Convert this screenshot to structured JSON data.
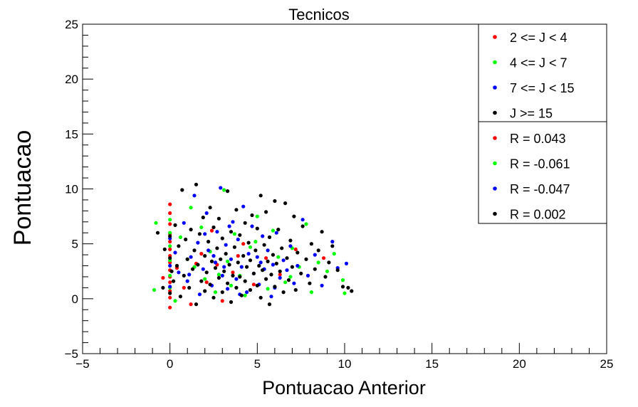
{
  "chart_data": {
    "type": "scatter",
    "title": "Tecnicos",
    "xlabel": "Pontuacao Anterior",
    "ylabel": "Pontuacao",
    "xlim": [
      -5,
      25
    ],
    "ylim": [
      -5,
      25
    ],
    "xticks": [
      "−5",
      "0",
      "5",
      "10",
      "15",
      "20",
      "25"
    ],
    "yticks": [
      "−5",
      "0",
      "5",
      "10",
      "15",
      "20",
      "25"
    ],
    "grid": false,
    "legend_position": "top-right",
    "series": [
      {
        "name": "2 <= J < 4",
        "color": "#ff0000",
        "R_label": "R = 0.043",
        "points": [
          [
            0,
            8.6
          ],
          [
            0,
            7.8
          ],
          [
            0,
            6.8
          ],
          [
            0,
            5.9
          ],
          [
            0,
            5.2
          ],
          [
            0,
            4.5
          ],
          [
            0,
            3.9
          ],
          [
            0,
            3.3
          ],
          [
            0,
            2.6
          ],
          [
            0,
            2.0
          ],
          [
            0,
            1.5
          ],
          [
            0,
            0.7
          ],
          [
            0,
            0.1
          ],
          [
            0,
            -0.8
          ],
          [
            -0.4,
            1.9
          ],
          [
            0.4,
            2.8
          ],
          [
            1.2,
            -0.5
          ],
          [
            1.8,
            4.1
          ],
          [
            2.4,
            6.2
          ],
          [
            2.7,
            3.1
          ],
          [
            3.0,
            -0.2
          ],
          [
            3.6,
            2.4
          ],
          [
            4.2,
            5.0
          ],
          [
            4.8,
            1.3
          ],
          [
            5.5,
            3.7
          ],
          [
            6.3,
            2.2
          ],
          [
            7.2,
            4.5
          ],
          [
            8.8,
            3.7
          ],
          [
            0.8,
            1.0
          ],
          [
            1.5,
            3.2
          ],
          [
            2.1,
            1.5
          ],
          [
            3.9,
            3.9
          ]
        ]
      },
      {
        "name": "4 <= J < 7",
        "color": "#00ff00",
        "R_label": "R = -0.061",
        "points": [
          [
            -0.8,
            6.9
          ],
          [
            -0.9,
            0.8
          ],
          [
            0,
            7.2
          ],
          [
            0,
            6.0
          ],
          [
            0,
            4.8
          ],
          [
            0,
            3.5
          ],
          [
            0,
            2.1
          ],
          [
            0,
            1.0
          ],
          [
            0.3,
            -0.2
          ],
          [
            0.6,
            5.6
          ],
          [
            1.2,
            8.3
          ],
          [
            1.4,
            2.9
          ],
          [
            1.8,
            6.5
          ],
          [
            2.0,
            1.8
          ],
          [
            2.3,
            4.3
          ],
          [
            2.6,
            0.6
          ],
          [
            3.1,
            9.9
          ],
          [
            3.3,
            3.4
          ],
          [
            3.7,
            5.9
          ],
          [
            4.0,
            2.1
          ],
          [
            4.3,
            0.3
          ],
          [
            4.6,
            4.7
          ],
          [
            5.0,
            7.5
          ],
          [
            5.3,
            2.6
          ],
          [
            5.6,
            0.9
          ],
          [
            5.9,
            6.2
          ],
          [
            6.2,
            3.8
          ],
          [
            6.6,
            1.5
          ],
          [
            7.0,
            4.6
          ],
          [
            7.4,
            2.9
          ],
          [
            7.8,
            6.8
          ],
          [
            8.1,
            0.6
          ],
          [
            8.5,
            3.3
          ],
          [
            9.0,
            2.5
          ],
          [
            9.4,
            4.1
          ],
          [
            9.9,
            1.7
          ],
          [
            10.0,
            0.5
          ],
          [
            1.0,
            3.6
          ],
          [
            2.8,
            2.2
          ],
          [
            4.9,
            5.2
          ],
          [
            6.9,
            2.0
          ],
          [
            3.5,
            1.2
          ]
        ]
      },
      {
        "name": "7 <= J < 15",
        "color": "#0000ff",
        "R_label": "R = -0.047",
        "points": [
          [
            0,
            1.1
          ],
          [
            0,
            3.0
          ],
          [
            0,
            5.5
          ],
          [
            0.3,
            4.2
          ],
          [
            0.5,
            2.4
          ],
          [
            0.8,
            6.9
          ],
          [
            1.0,
            1.6
          ],
          [
            1.2,
            3.8
          ],
          [
            1.4,
            9.4
          ],
          [
            1.6,
            5.1
          ],
          [
            1.7,
            0.4
          ],
          [
            1.9,
            2.7
          ],
          [
            2.1,
            7.8
          ],
          [
            2.2,
            4.4
          ],
          [
            2.4,
            1.2
          ],
          [
            2.6,
            3.3
          ],
          [
            2.7,
            6.1
          ],
          [
            2.9,
            10.1
          ],
          [
            3.0,
            2.1
          ],
          [
            3.2,
            4.9
          ],
          [
            3.3,
            0.9
          ],
          [
            3.5,
            3.6
          ],
          [
            3.6,
            7.0
          ],
          [
            3.8,
            1.8
          ],
          [
            3.9,
            5.4
          ],
          [
            4.1,
            2.9
          ],
          [
            4.2,
            8.4
          ],
          [
            4.4,
            0.6
          ],
          [
            4.5,
            4.1
          ],
          [
            4.7,
            6.6
          ],
          [
            4.8,
            2.3
          ],
          [
            5.0,
            3.8
          ],
          [
            5.1,
            1.3
          ],
          [
            5.3,
            5.7
          ],
          [
            5.4,
            2.7
          ],
          [
            5.6,
            4.4
          ],
          [
            5.8,
            0.2
          ],
          [
            5.9,
            3.1
          ],
          [
            6.1,
            6.0
          ],
          [
            6.3,
            1.9
          ],
          [
            6.5,
            3.5
          ],
          [
            6.7,
            2.6
          ],
          [
            6.9,
            4.8
          ],
          [
            7.1,
            1.4
          ],
          [
            7.3,
            3.0
          ],
          [
            7.6,
            7.2
          ],
          [
            7.9,
            2.1
          ],
          [
            8.3,
            4.0
          ],
          [
            8.7,
            1.2
          ],
          [
            9.3,
            5.2
          ],
          [
            9.6,
            2.8
          ],
          [
            10.1,
            3.2
          ],
          [
            1.1,
            2.2
          ],
          [
            2.0,
            5.9
          ],
          [
            3.1,
            2.9
          ],
          [
            4.0,
            0.4
          ],
          [
            5.2,
            3.3
          ],
          [
            6.0,
            1.0
          ],
          [
            3.4,
            6.6
          ],
          [
            2.5,
            3.9
          ]
        ]
      },
      {
        "name": "J >= 15",
        "color": "#000000",
        "R_label": "R = 0.002",
        "points": [
          [
            -0.7,
            6.0
          ],
          [
            -0.4,
            1.0
          ],
          [
            -0.3,
            4.5
          ],
          [
            0,
            5.7
          ],
          [
            0,
            3.7
          ],
          [
            0,
            0.5
          ],
          [
            0.1,
            2.5
          ],
          [
            0.2,
            1.6
          ],
          [
            0.3,
            6.7
          ],
          [
            0.4,
            3.0
          ],
          [
            0.5,
            4.8
          ],
          [
            0.6,
            0.2
          ],
          [
            0.7,
            9.9
          ],
          [
            0.8,
            2.1
          ],
          [
            0.9,
            5.4
          ],
          [
            1.0,
            3.6
          ],
          [
            1.1,
            1.0
          ],
          [
            1.2,
            6.3
          ],
          [
            1.3,
            2.7
          ],
          [
            1.4,
            4.4
          ],
          [
            1.5,
            10.4
          ],
          [
            1.5,
            -0.5
          ],
          [
            1.6,
            3.1
          ],
          [
            1.7,
            5.9
          ],
          [
            1.8,
            1.6
          ],
          [
            1.9,
            7.4
          ],
          [
            2.0,
            3.9
          ],
          [
            2.0,
            0.7
          ],
          [
            2.1,
            2.4
          ],
          [
            2.2,
            5.2
          ],
          [
            2.3,
            8.3
          ],
          [
            2.3,
            1.3
          ],
          [
            2.4,
            3.4
          ],
          [
            2.5,
            6.5
          ],
          [
            2.5,
            0.1
          ],
          [
            2.6,
            2.8
          ],
          [
            2.7,
            4.6
          ],
          [
            2.8,
            1.9
          ],
          [
            2.8,
            7.3
          ],
          [
            2.9,
            3.6
          ],
          [
            3.0,
            0.6
          ],
          [
            3.0,
            5.5
          ],
          [
            3.1,
            2.5
          ],
          [
            3.2,
            4.1
          ],
          [
            3.3,
            9.8
          ],
          [
            3.3,
            1.4
          ],
          [
            3.4,
            3.1
          ],
          [
            3.5,
            6.1
          ],
          [
            3.5,
            -0.3
          ],
          [
            3.6,
            2.1
          ],
          [
            3.7,
            4.7
          ],
          [
            3.8,
            1.0
          ],
          [
            3.8,
            8.1
          ],
          [
            3.9,
            3.3
          ],
          [
            4.0,
            5.8
          ],
          [
            4.0,
            2.0
          ],
          [
            4.1,
            0.3
          ],
          [
            4.2,
            3.9
          ],
          [
            4.3,
            6.9
          ],
          [
            4.3,
            1.6
          ],
          [
            4.4,
            2.9
          ],
          [
            4.5,
            5.1
          ],
          [
            4.6,
            0.8
          ],
          [
            4.6,
            3.5
          ],
          [
            4.7,
            7.6
          ],
          [
            4.8,
            2.3
          ],
          [
            4.9,
            4.4
          ],
          [
            5.0,
            1.2
          ],
          [
            5.0,
            6.4
          ],
          [
            5.1,
            3.0
          ],
          [
            5.2,
            9.4
          ],
          [
            5.2,
            0.1
          ],
          [
            5.3,
            2.6
          ],
          [
            5.4,
            4.9
          ],
          [
            5.5,
            1.8
          ],
          [
            5.5,
            7.9
          ],
          [
            5.6,
            3.4
          ],
          [
            5.7,
            -0.5
          ],
          [
            5.7,
            5.6
          ],
          [
            5.8,
            2.2
          ],
          [
            5.9,
            4.0
          ],
          [
            6.0,
            8.9
          ],
          [
            6.0,
            1.1
          ],
          [
            6.1,
            3.2
          ],
          [
            6.2,
            6.3
          ],
          [
            6.3,
            2.5
          ],
          [
            6.4,
            4.6
          ],
          [
            6.5,
            0.6
          ],
          [
            6.6,
            8.7
          ],
          [
            6.7,
            3.7
          ],
          [
            6.8,
            1.7
          ],
          [
            6.9,
            5.3
          ],
          [
            7.0,
            2.9
          ],
          [
            7.1,
            7.5
          ],
          [
            7.2,
            0.8
          ],
          [
            7.3,
            4.2
          ],
          [
            7.5,
            2.3
          ],
          [
            7.6,
            6.6
          ],
          [
            7.8,
            3.6
          ],
          [
            8.0,
            1.4
          ],
          [
            8.1,
            5.0
          ],
          [
            8.3,
            2.7
          ],
          [
            8.5,
            4.4
          ],
          [
            8.7,
            6.1
          ],
          [
            8.9,
            2.0
          ],
          [
            9.1,
            3.3
          ],
          [
            9.3,
            4.8
          ],
          [
            9.6,
            2.6
          ],
          [
            9.9,
            1.1
          ],
          [
            10.2,
            1.0
          ],
          [
            10.4,
            0.7
          ]
        ]
      }
    ]
  }
}
